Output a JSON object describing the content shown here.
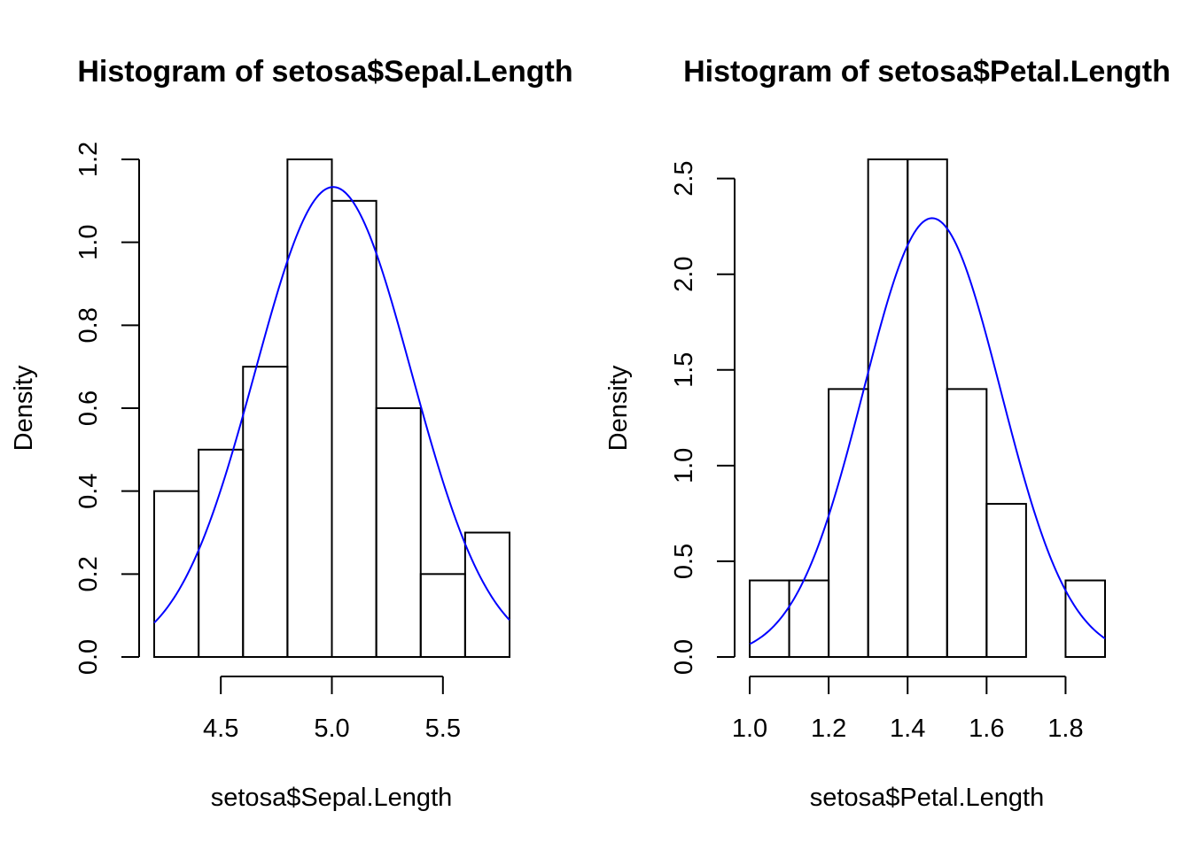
{
  "chart_data": [
    {
      "type": "bar",
      "title": "Histogram of setosa$Sepal.Length",
      "xlabel": "setosa$Sepal.Length",
      "ylabel": "Density",
      "bins": [
        {
          "from": 4.2,
          "to": 4.4,
          "density": 0.4
        },
        {
          "from": 4.4,
          "to": 4.6,
          "density": 0.5
        },
        {
          "from": 4.6,
          "to": 4.8,
          "density": 0.7
        },
        {
          "from": 4.8,
          "to": 5.0,
          "density": 1.2
        },
        {
          "from": 5.0,
          "to": 5.2,
          "density": 1.1
        },
        {
          "from": 5.2,
          "to": 5.4,
          "density": 0.6
        },
        {
          "from": 5.4,
          "to": 5.6,
          "density": 0.2
        },
        {
          "from": 5.6,
          "to": 5.8,
          "density": 0.3
        }
      ],
      "xlim": [
        4.2,
        5.8
      ],
      "ylim": [
        0,
        1.2
      ],
      "x_ticks": [
        "4.5",
        "5.0",
        "5.5"
      ],
      "y_ticks": [
        "0.0",
        "0.2",
        "0.4",
        "0.6",
        "0.8",
        "1.0",
        "1.2"
      ],
      "density_curve": {
        "type": "normal",
        "mean": 5.006,
        "sd": 0.352,
        "color": "#0000ff"
      },
      "grid": false
    },
    {
      "type": "bar",
      "title": "Histogram of setosa$Petal.Length",
      "xlabel": "setosa$Petal.Length",
      "ylabel": "Density",
      "bins": [
        {
          "from": 1.0,
          "to": 1.1,
          "density": 0.4
        },
        {
          "from": 1.1,
          "to": 1.2,
          "density": 0.4
        },
        {
          "from": 1.2,
          "to": 1.3,
          "density": 1.4
        },
        {
          "from": 1.3,
          "to": 1.4,
          "density": 2.6
        },
        {
          "from": 1.4,
          "to": 1.5,
          "density": 2.6
        },
        {
          "from": 1.5,
          "to": 1.6,
          "density": 1.4
        },
        {
          "from": 1.6,
          "to": 1.7,
          "density": 0.8
        },
        {
          "from": 1.7,
          "to": 1.8,
          "density": 0.0
        },
        {
          "from": 1.8,
          "to": 1.9,
          "density": 0.4
        }
      ],
      "xlim": [
        1.0,
        1.9
      ],
      "ylim": [
        0,
        2.6
      ],
      "x_ticks": [
        "1.0",
        "1.2",
        "1.4",
        "1.6",
        "1.8"
      ],
      "y_ticks": [
        "0.0",
        "0.5",
        "1.0",
        "1.5",
        "2.0",
        "2.5"
      ],
      "density_curve": {
        "type": "normal",
        "mean": 1.462,
        "sd": 0.174,
        "color": "#0000ff"
      },
      "grid": false
    }
  ]
}
